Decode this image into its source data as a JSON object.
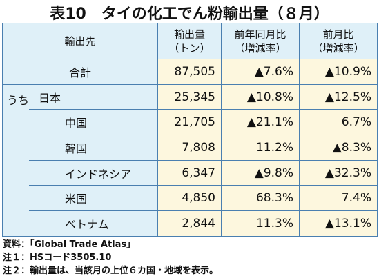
{
  "title": "表10　タイの化工でん粉輸出量（８月）",
  "table": {
    "header": [
      "輸出先",
      "輸出量\n（トン）",
      "前年同月比\n（増減率）",
      "前月比\n（増減率）"
    ],
    "sub_label": "うち",
    "rows": [
      [
        "合計",
        "87,505",
        "▲7.6%",
        "▲10.9%"
      ],
      [
        "日本",
        "25,345",
        "▲10.8%",
        "▲12.5%"
      ],
      [
        "中国",
        "21,705",
        "▲21.1%",
        "6.7%"
      ],
      [
        "韓国",
        "7,808",
        "11.2%",
        "▲8.3%"
      ],
      [
        "インドネシア",
        "6,347",
        "▲9.8%",
        "▲32.3%"
      ],
      [
        "米国",
        "4,850",
        "68.3%",
        "7.4%"
      ],
      [
        "ベトナム",
        "2,844",
        "11.3%",
        "▲13.1%"
      ]
    ]
  },
  "notes": [
    "資料：「Global Trade Atlas」",
    "注１：HSコード3505.10",
    "注２：輸出量は、当該月の上位６カ国・地域を表示。"
  ]
}
